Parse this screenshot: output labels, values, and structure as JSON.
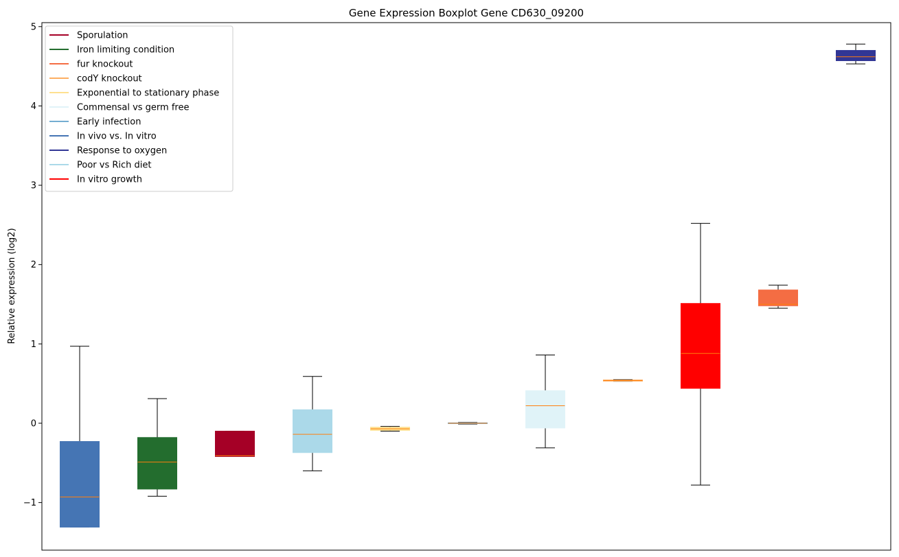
{
  "chart_data": {
    "type": "boxplot",
    "title": "Gene Expression Boxplot Gene CD630_09200",
    "xlabel": "",
    "ylabel": "Relative expression (log2)",
    "ylim": [
      -1.6,
      5.05
    ],
    "yticks": [
      -1,
      0,
      1,
      2,
      3,
      4,
      5
    ],
    "ytick_labels": [
      "−1",
      "0",
      "1",
      "2",
      "3",
      "4",
      "5"
    ],
    "show_xticks": false,
    "grid": false,
    "legend_position": "upper-left",
    "legend": [
      {
        "label": "Sporulation",
        "color": "#a50026"
      },
      {
        "label": "Iron limiting condition",
        "color": "#236d2e"
      },
      {
        "label": "fur knockout",
        "color": "#f46d43"
      },
      {
        "label": "codY knockout",
        "color": "#fdae61"
      },
      {
        "label": "Exponential to stationary phase",
        "color": "#fee090"
      },
      {
        "label": "Commensal vs germ free",
        "color": "#e0f3f8"
      },
      {
        "label": "Early infection",
        "color": "#74add1"
      },
      {
        "label": "In vivo vs. In vitro",
        "color": "#4575b4"
      },
      {
        "label": "Response to oxygen",
        "color": "#313695"
      },
      {
        "label": "Poor vs Rich diet",
        "color": "#abd9e9"
      },
      {
        "label": "In vitro growth",
        "color": "#ff0000"
      }
    ],
    "boxes": [
      {
        "color": "#4575b4",
        "whislo": -1.31,
        "q1": -1.31,
        "med": -0.93,
        "q3": -0.23,
        "whishi": 0.97
      },
      {
        "color": "#236d2e",
        "whislo": -0.92,
        "q1": -0.83,
        "med": -0.49,
        "q3": -0.18,
        "whishi": 0.31
      },
      {
        "color": "#a50026",
        "whislo": -0.42,
        "q1": -0.42,
        "med": -0.41,
        "q3": -0.1,
        "whishi": -0.1
      },
      {
        "color": "#abd9e9",
        "whislo": -0.6,
        "q1": -0.37,
        "med": -0.14,
        "q3": 0.17,
        "whishi": 0.59
      },
      {
        "color": "#fee090",
        "whislo": -0.1,
        "q1": -0.09,
        "med": -0.07,
        "q3": -0.05,
        "whishi": -0.04
      },
      {
        "color": "#74add1",
        "whislo": -0.01,
        "q1": -0.005,
        "med": 0.0,
        "q3": 0.005,
        "whishi": 0.01
      },
      {
        "color": "#e0f3f8",
        "whislo": -0.31,
        "q1": -0.06,
        "med": 0.22,
        "q3": 0.41,
        "whishi": 0.86
      },
      {
        "color": "#fdae61",
        "whislo": 0.53,
        "q1": 0.53,
        "med": 0.54,
        "q3": 0.545,
        "whishi": 0.55
      },
      {
        "color": "#ff0000",
        "whislo": -0.78,
        "q1": 0.44,
        "med": 0.88,
        "q3": 1.51,
        "whishi": 2.52
      },
      {
        "color": "#f46d43",
        "whislo": 1.45,
        "q1": 1.48,
        "med": 1.5,
        "q3": 1.68,
        "whishi": 1.74
      },
      {
        "color": "#313695",
        "whislo": 4.53,
        "q1": 4.57,
        "med": 4.62,
        "q3": 4.7,
        "whishi": 4.78
      }
    ],
    "median_color": "#ff7f0e"
  }
}
